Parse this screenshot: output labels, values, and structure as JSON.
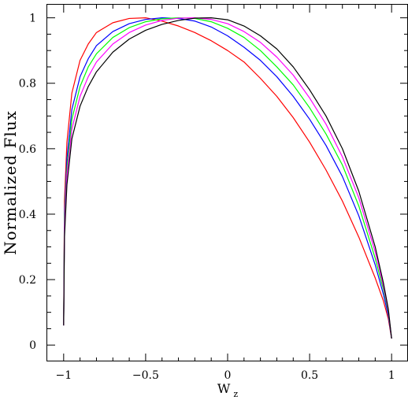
{
  "chart_data": {
    "type": "line",
    "title": "",
    "xlabel": "W",
    "xlabel_subscript": "z",
    "ylabel": "Normalized Flux",
    "xlim": [
      -1.1,
      1.1
    ],
    "ylim": [
      -0.05,
      1.04
    ],
    "xticks": [
      -1,
      -0.5,
      0,
      0.5,
      1
    ],
    "xtick_labels": [
      "−1",
      "−0.5",
      "0",
      "0.5",
      "1"
    ],
    "yticks": [
      0,
      0.2,
      0.4,
      0.6,
      0.8,
      1
    ],
    "ytick_labels": [
      "0",
      "0.2",
      "0.4",
      "0.6",
      "0.8",
      "1"
    ],
    "grid": false,
    "legend": "none",
    "series": [
      {
        "color": "#ff0000",
        "x": [
          -1.0,
          -0.995,
          -0.98,
          -0.95,
          -0.9,
          -0.85,
          -0.8,
          -0.7,
          -0.6,
          -0.5,
          -0.4,
          -0.3,
          -0.2,
          -0.1,
          0.0,
          0.1,
          0.2,
          0.3,
          0.4,
          0.5,
          0.6,
          0.7,
          0.8,
          0.9,
          0.95,
          0.98,
          1.0
        ],
        "y": [
          0.06,
          0.44,
          0.62,
          0.77,
          0.87,
          0.92,
          0.955,
          0.985,
          0.998,
          1.0,
          0.99,
          0.975,
          0.955,
          0.93,
          0.9,
          0.865,
          0.815,
          0.76,
          0.695,
          0.62,
          0.535,
          0.44,
          0.33,
          0.205,
          0.135,
          0.08,
          0.02
        ]
      },
      {
        "color": "#0000ff",
        "x": [
          -1.0,
          -0.995,
          -0.98,
          -0.95,
          -0.9,
          -0.85,
          -0.8,
          -0.7,
          -0.6,
          -0.5,
          -0.4,
          -0.3,
          -0.2,
          -0.1,
          0.0,
          0.1,
          0.2,
          0.3,
          0.4,
          0.5,
          0.6,
          0.7,
          0.8,
          0.9,
          0.95,
          0.98,
          1.0
        ],
        "y": [
          0.06,
          0.4,
          0.57,
          0.72,
          0.82,
          0.875,
          0.915,
          0.958,
          0.982,
          0.995,
          1.0,
          0.998,
          0.99,
          0.972,
          0.945,
          0.91,
          0.87,
          0.82,
          0.76,
          0.69,
          0.61,
          0.515,
          0.395,
          0.245,
          0.155,
          0.09,
          0.02
        ]
      },
      {
        "color": "#00ff00",
        "x": [
          -1.0,
          -0.995,
          -0.98,
          -0.95,
          -0.9,
          -0.85,
          -0.8,
          -0.7,
          -0.6,
          -0.5,
          -0.4,
          -0.3,
          -0.2,
          -0.1,
          0.0,
          0.1,
          0.2,
          0.3,
          0.4,
          0.5,
          0.6,
          0.7,
          0.8,
          0.9,
          0.95,
          0.98,
          1.0
        ],
        "y": [
          0.06,
          0.38,
          0.54,
          0.69,
          0.79,
          0.85,
          0.89,
          0.94,
          0.97,
          0.988,
          0.997,
          1.0,
          0.998,
          0.988,
          0.968,
          0.94,
          0.9,
          0.85,
          0.795,
          0.725,
          0.645,
          0.55,
          0.425,
          0.265,
          0.17,
          0.1,
          0.02
        ]
      },
      {
        "color": "#ff00ff",
        "x": [
          -1.0,
          -0.995,
          -0.98,
          -0.95,
          -0.9,
          -0.85,
          -0.8,
          -0.7,
          -0.6,
          -0.5,
          -0.4,
          -0.3,
          -0.2,
          -0.1,
          0.0,
          0.1,
          0.2,
          0.3,
          0.4,
          0.5,
          0.6,
          0.7,
          0.8,
          0.9,
          0.95,
          0.98,
          1.0
        ],
        "y": [
          0.06,
          0.36,
          0.52,
          0.66,
          0.76,
          0.82,
          0.865,
          0.92,
          0.955,
          0.978,
          0.992,
          0.999,
          1.0,
          0.995,
          0.982,
          0.958,
          0.925,
          0.88,
          0.825,
          0.755,
          0.675,
          0.575,
          0.45,
          0.285,
          0.18,
          0.105,
          0.02
        ]
      },
      {
        "color": "#000000",
        "x": [
          -1.0,
          -0.995,
          -0.98,
          -0.95,
          -0.9,
          -0.85,
          -0.8,
          -0.7,
          -0.6,
          -0.5,
          -0.4,
          -0.3,
          -0.2,
          -0.1,
          0.0,
          0.1,
          0.2,
          0.3,
          0.4,
          0.5,
          0.6,
          0.7,
          0.8,
          0.9,
          0.95,
          0.98,
          1.0
        ],
        "y": [
          0.06,
          0.33,
          0.49,
          0.63,
          0.73,
          0.79,
          0.835,
          0.895,
          0.935,
          0.962,
          0.98,
          0.992,
          0.999,
          1.0,
          0.994,
          0.975,
          0.945,
          0.905,
          0.85,
          0.78,
          0.7,
          0.6,
          0.47,
          0.3,
          0.19,
          0.11,
          0.02
        ]
      }
    ]
  }
}
